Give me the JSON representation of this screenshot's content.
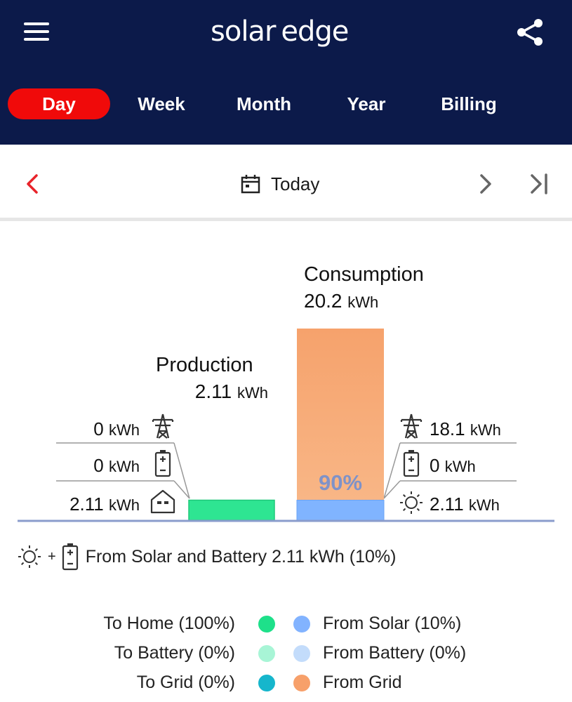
{
  "header": {
    "logo_part1": "solar",
    "logo_part2": "edge"
  },
  "tabs": [
    {
      "label": "Day",
      "active": true
    },
    {
      "label": "Week",
      "active": false
    },
    {
      "label": "Month",
      "active": false
    },
    {
      "label": "Year",
      "active": false
    },
    {
      "label": "Billing",
      "active": false
    }
  ],
  "date_nav": {
    "label": "Today"
  },
  "production": {
    "title": "Production",
    "value": "2.11",
    "unit": "kWh",
    "rows": [
      {
        "value": "0",
        "unit": "kWh",
        "icon": "grid-tower-icon"
      },
      {
        "value": "0",
        "unit": "kWh",
        "icon": "battery-icon"
      },
      {
        "value": "2.11",
        "unit": "kWh",
        "icon": "home-icon"
      }
    ]
  },
  "consumption": {
    "title": "Consumption",
    "value": "20.2",
    "unit": "kWh",
    "percent_label": "90%",
    "rows": [
      {
        "value": "18.1",
        "unit": "kWh",
        "icon": "grid-tower-icon"
      },
      {
        "value": "0",
        "unit": "kWh",
        "icon": "battery-icon"
      },
      {
        "value": "2.11",
        "unit": "kWh",
        "icon": "sun-icon"
      }
    ]
  },
  "summary": {
    "plus": "+",
    "text": "From Solar and Battery 2.11 kWh (10%)"
  },
  "legend": {
    "left": [
      {
        "label": "To Home (100%)",
        "color": "#1ee08a"
      },
      {
        "label": "To Battery (0%)",
        "color": "#a8f5d6"
      },
      {
        "label": "To Grid (0%)",
        "color": "#16b6cc"
      }
    ],
    "right": [
      {
        "label": "From Solar (10%)",
        "color": "#82b3ff"
      },
      {
        "label": "From Battery (0%)",
        "color": "#c3dcfb"
      },
      {
        "label": "From Grid",
        "color": "#f7a06a"
      }
    ]
  },
  "colors": {
    "header_bg": "#0c1a4a",
    "active_tab": "#f00a0a",
    "brand_red": "#e8232a",
    "baseline": "#8a9ccc"
  },
  "chart_data": {
    "type": "bar",
    "categories": [
      "Production",
      "Consumption"
    ],
    "series": [
      {
        "name": "To Home",
        "values": [
          2.11,
          0
        ]
      },
      {
        "name": "From Solar",
        "values": [
          0,
          2.11
        ]
      },
      {
        "name": "From Grid",
        "values": [
          0,
          18.1
        ]
      }
    ],
    "totals": [
      2.11,
      20.2
    ]
  }
}
